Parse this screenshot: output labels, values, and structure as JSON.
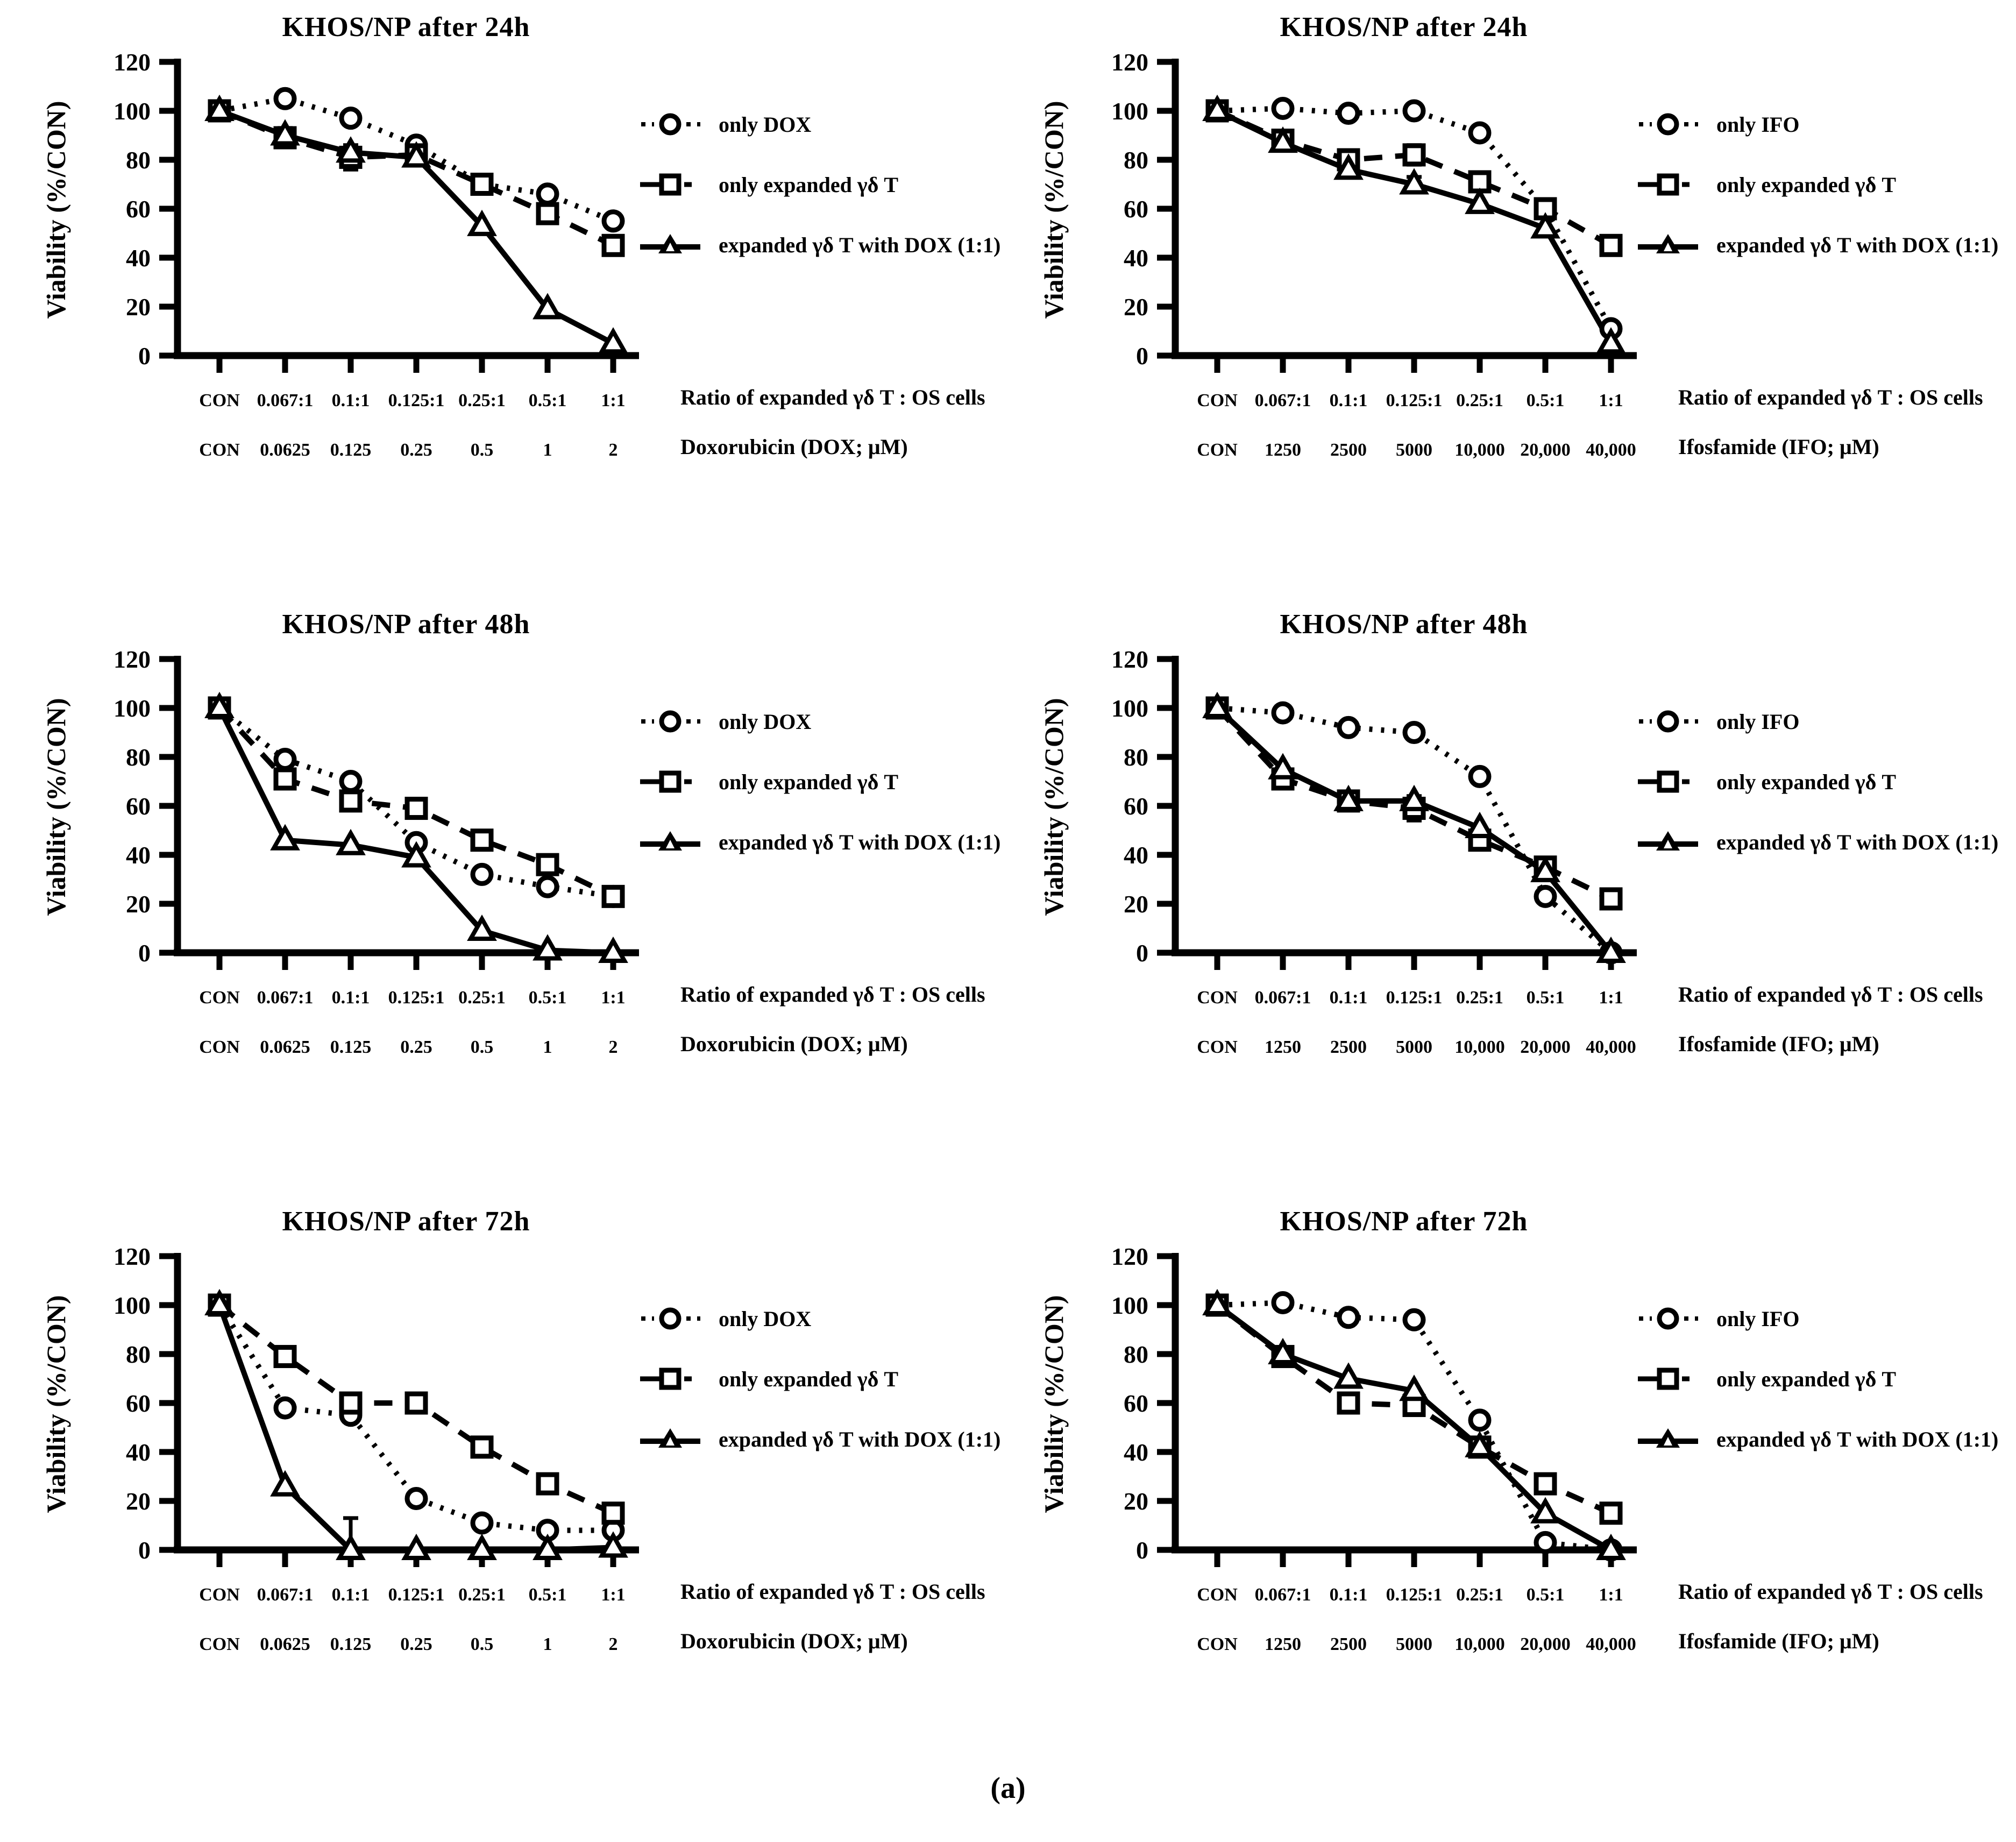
{
  "figure_label": "(a)",
  "chart_data": [
    {
      "type": "line",
      "title": "KHOS/NP after 24h",
      "ylabel": "Viability (%/CON)",
      "ylim": [
        0,
        120
      ],
      "yticks": [
        120,
        100,
        80,
        60,
        40,
        20,
        0
      ],
      "x_ratio_labels": [
        "CON",
        "0.067:1",
        "0.1:1",
        "0.125:1",
        "0.25:1",
        "0.5:1",
        "1:1"
      ],
      "x_dose_labels": [
        "CON",
        "0.0625",
        "0.125",
        "0.25",
        "0.5",
        "1",
        "2"
      ],
      "xcaption_ratio": "Ratio of expanded γδ T : OS cells",
      "xcaption_dose": "Doxorubicin (DOX; μM)",
      "series": [
        {
          "name": "only DOX",
          "marker": "circle",
          "line": "dotted",
          "values": [
            100,
            105,
            97,
            86,
            70,
            66,
            55
          ],
          "err": [
            2,
            0,
            0,
            0,
            0,
            0,
            0
          ]
        },
        {
          "name": "only expanded γδ T",
          "marker": "square",
          "line": "dashed",
          "values": [
            100,
            89,
            81,
            82,
            70,
            58,
            45
          ],
          "err": [
            3,
            0,
            5,
            0,
            0,
            0,
            0
          ]
        },
        {
          "name": "expanded γδ T with DOX (1:1)",
          "marker": "triangle",
          "line": "solid",
          "values": [
            100,
            90,
            83,
            81,
            53,
            19,
            5
          ],
          "err": [
            3,
            3,
            0,
            0,
            0,
            0,
            0
          ]
        }
      ]
    },
    {
      "type": "line",
      "title": "KHOS/NP after 24h",
      "ylabel": "Viability (%/CON)",
      "ylim": [
        0,
        120
      ],
      "yticks": [
        120,
        100,
        80,
        60,
        40,
        20,
        0
      ],
      "x_ratio_labels": [
        "CON",
        "0.067:1",
        "0.1:1",
        "0.125:1",
        "0.25:1",
        "0.5:1",
        "1:1"
      ],
      "x_dose_labels": [
        "CON",
        "1250",
        "2500",
        "5000",
        "10,000",
        "20,000",
        "40,000"
      ],
      "xcaption_ratio": "Ratio of expanded γδ T : OS cells",
      "xcaption_dose": "Ifosfamide (IFO; μM)",
      "series": [
        {
          "name": "only IFO",
          "marker": "circle",
          "line": "dotted",
          "values": [
            100,
            101,
            99,
            100,
            91,
            60,
            11
          ],
          "err": [
            2,
            0,
            0,
            0,
            0,
            0,
            0
          ]
        },
        {
          "name": "only expanded γδ T",
          "marker": "square",
          "line": "dashed",
          "values": [
            100,
            88,
            80,
            82,
            71,
            60,
            45
          ],
          "err": [
            3,
            3,
            0,
            4,
            0,
            0,
            0
          ]
        },
        {
          "name": "expanded γδ T with DOX (1:1)",
          "marker": "triangle",
          "line": "solid",
          "values": [
            100,
            87,
            76,
            70,
            62,
            52,
            5
          ],
          "err": [
            3,
            0,
            0,
            3,
            0,
            0,
            0
          ]
        }
      ]
    },
    {
      "type": "line",
      "title": "KHOS/NP after 48h",
      "ylabel": "Viability (%/CON)",
      "ylim": [
        0,
        120
      ],
      "yticks": [
        120,
        100,
        80,
        60,
        40,
        20,
        0
      ],
      "x_ratio_labels": [
        "CON",
        "0.067:1",
        "0.1:1",
        "0.125:1",
        "0.25:1",
        "0.5:1",
        "1:1"
      ],
      "x_dose_labels": [
        "CON",
        "0.0625",
        "0.125",
        "0.25",
        "0.5",
        "1",
        "2"
      ],
      "xcaption_ratio": "Ratio of expanded γδ T : OS cells",
      "xcaption_dose": "Doxorubicin (DOX; μM)",
      "series": [
        {
          "name": "only DOX",
          "marker": "circle",
          "line": "dotted",
          "values": [
            100,
            79,
            70,
            45,
            32,
            27,
            23
          ],
          "err": [
            2,
            0,
            0,
            0,
            0,
            0,
            0
          ]
        },
        {
          "name": "only expanded γδ T",
          "marker": "square",
          "line": "dashed",
          "values": [
            100,
            71,
            62,
            59,
            46,
            36,
            23
          ],
          "err": [
            2,
            0,
            0,
            0,
            0,
            0,
            0
          ]
        },
        {
          "name": "expanded γδ T with DOX (1:1)",
          "marker": "triangle",
          "line": "solid",
          "values": [
            100,
            46,
            44,
            39,
            9,
            1,
            0
          ],
          "err": [
            2,
            0,
            0,
            0,
            0,
            0,
            0
          ]
        }
      ]
    },
    {
      "type": "line",
      "title": "KHOS/NP after 48h",
      "ylabel": "Viability (%/CON)",
      "ylim": [
        0,
        120
      ],
      "yticks": [
        120,
        100,
        80,
        60,
        40,
        20,
        0
      ],
      "x_ratio_labels": [
        "CON",
        "0.067:1",
        "0.1:1",
        "0.125:1",
        "0.25:1",
        "0.5:1",
        "1:1"
      ],
      "x_dose_labels": [
        "CON",
        "1250",
        "2500",
        "5000",
        "10,000",
        "20,000",
        "40,000"
      ],
      "xcaption_ratio": "Ratio of expanded γδ T : OS cells",
      "xcaption_dose": "Ifosfamide (IFO; μM)",
      "series": [
        {
          "name": "only IFO",
          "marker": "circle",
          "line": "dotted",
          "values": [
            100,
            98,
            92,
            90,
            72,
            23,
            0
          ],
          "err": [
            2,
            0,
            0,
            0,
            0,
            0,
            0
          ]
        },
        {
          "name": "only expanded γδ T",
          "marker": "square",
          "line": "dashed",
          "values": [
            100,
            71,
            62,
            59,
            46,
            35,
            22
          ],
          "err": [
            0,
            0,
            0,
            5,
            0,
            0,
            0
          ]
        },
        {
          "name": "expanded γδ T with DOX (1:1)",
          "marker": "triangle",
          "line": "solid",
          "values": [
            100,
            75,
            62,
            62,
            51,
            33,
            0
          ],
          "err": [
            2,
            0,
            0,
            0,
            0,
            0,
            0
          ]
        }
      ]
    },
    {
      "type": "line",
      "title": "KHOS/NP after 72h",
      "ylabel": "Viability (%/CON)",
      "ylim": [
        0,
        120
      ],
      "yticks": [
        120,
        100,
        80,
        60,
        40,
        20,
        0
      ],
      "x_ratio_labels": [
        "CON",
        "0.067:1",
        "0.1:1",
        "0.125:1",
        "0.25:1",
        "0.5:1",
        "1:1"
      ],
      "x_dose_labels": [
        "CON",
        "0.0625",
        "0.125",
        "0.25",
        "0.5",
        "1",
        "2"
      ],
      "xcaption_ratio": "Ratio of expanded γδ T : OS cells",
      "xcaption_dose": "Doxorubicin (DOX; μM)",
      "series": [
        {
          "name": "only DOX",
          "marker": "circle",
          "line": "dotted",
          "values": [
            100,
            58,
            55,
            21,
            11,
            8,
            8
          ],
          "err": [
            2,
            0,
            0,
            0,
            0,
            0,
            0
          ]
        },
        {
          "name": "only expanded γδ T",
          "marker": "square",
          "line": "dashed",
          "values": [
            100,
            79,
            60,
            60,
            42,
            27,
            15
          ],
          "err": [
            2,
            0,
            0,
            0,
            0,
            0,
            0
          ]
        },
        {
          "name": "expanded γδ T with DOX (1:1)",
          "marker": "triangle",
          "line": "solid",
          "values": [
            100,
            26,
            0,
            0,
            0,
            0,
            1
          ],
          "err": [
            2,
            0,
            13,
            0,
            0,
            0,
            0
          ]
        }
      ]
    },
    {
      "type": "line",
      "title": "KHOS/NP after 72h",
      "ylabel": "Viability (%/CON)",
      "ylim": [
        0,
        120
      ],
      "yticks": [
        120,
        100,
        80,
        60,
        40,
        20,
        0
      ],
      "x_ratio_labels": [
        "CON",
        "0.067:1",
        "0.1:1",
        "0.125:1",
        "0.25:1",
        "0.5:1",
        "1:1"
      ],
      "x_dose_labels": [
        "CON",
        "1250",
        "2500",
        "5000",
        "10,000",
        "20,000",
        "40,000"
      ],
      "xcaption_ratio": "Ratio of expanded γδ T : OS cells",
      "xcaption_dose": "Ifosfamide (IFO; μM)",
      "series": [
        {
          "name": "only IFO",
          "marker": "circle",
          "line": "dotted",
          "values": [
            100,
            101,
            95,
            94,
            53,
            3,
            0
          ],
          "err": [
            2,
            0,
            0,
            0,
            0,
            0,
            0
          ]
        },
        {
          "name": "only expanded γδ T",
          "marker": "square",
          "line": "dashed",
          "values": [
            100,
            79,
            60,
            59,
            42,
            27,
            15
          ],
          "err": [
            2,
            0,
            0,
            0,
            0,
            0,
            0
          ]
        },
        {
          "name": "expanded γδ T with DOX (1:1)",
          "marker": "triangle",
          "line": "solid",
          "values": [
            100,
            80,
            70,
            65,
            42,
            15,
            0
          ],
          "err": [
            2,
            0,
            0,
            0,
            0,
            0,
            0
          ]
        }
      ]
    }
  ]
}
